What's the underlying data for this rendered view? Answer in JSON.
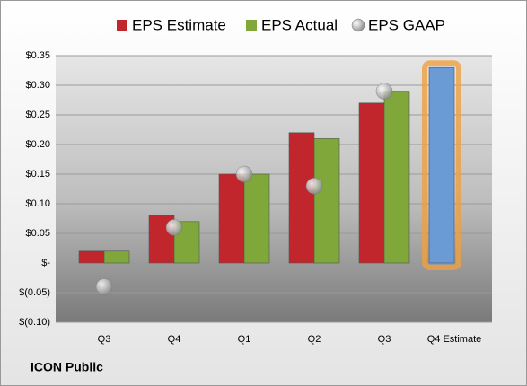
{
  "chart_data": {
    "type": "bar",
    "footer": "ICON Public",
    "categories": [
      "Q3",
      "Q4",
      "Q1",
      "Q2",
      "Q3",
      "Q4 Estimate"
    ],
    "series": [
      {
        "name": "EPS Estimate",
        "color": "#c0262c",
        "colors": [
          "#c0262c",
          "#c0262c",
          "#c0262c",
          "#c0262c",
          "#c0262c",
          "#6a9bd4"
        ],
        "values": [
          0.02,
          0.08,
          0.15,
          0.22,
          0.27,
          0.33
        ]
      },
      {
        "name": "EPS Actual",
        "color": "#7fa73a",
        "values": [
          0.02,
          0.07,
          0.15,
          0.21,
          0.29,
          null
        ]
      },
      {
        "name": "EPS GAAP",
        "color": "#b4b4b4",
        "marker": "circle",
        "values": [
          -0.04,
          0.06,
          0.15,
          0.13,
          0.29,
          null
        ]
      }
    ],
    "ylim": [
      -0.1,
      0.35
    ],
    "yticks": [
      {
        "value": -0.1,
        "label": "$(0.10)"
      },
      {
        "value": -0.05,
        "label": "$(0.05)"
      },
      {
        "value": 0,
        "label": "$-"
      },
      {
        "value": 0.05,
        "label": "$0.05"
      },
      {
        "value": 0.1,
        "label": "$0.10"
      },
      {
        "value": 0.15,
        "label": "$0.15"
      },
      {
        "value": 0.2,
        "label": "$0.20"
      },
      {
        "value": 0.25,
        "label": "$0.25"
      },
      {
        "value": 0.3,
        "label": "$0.30"
      },
      {
        "value": 0.35,
        "label": "$0.35"
      }
    ],
    "grid": true,
    "legend": "top"
  }
}
